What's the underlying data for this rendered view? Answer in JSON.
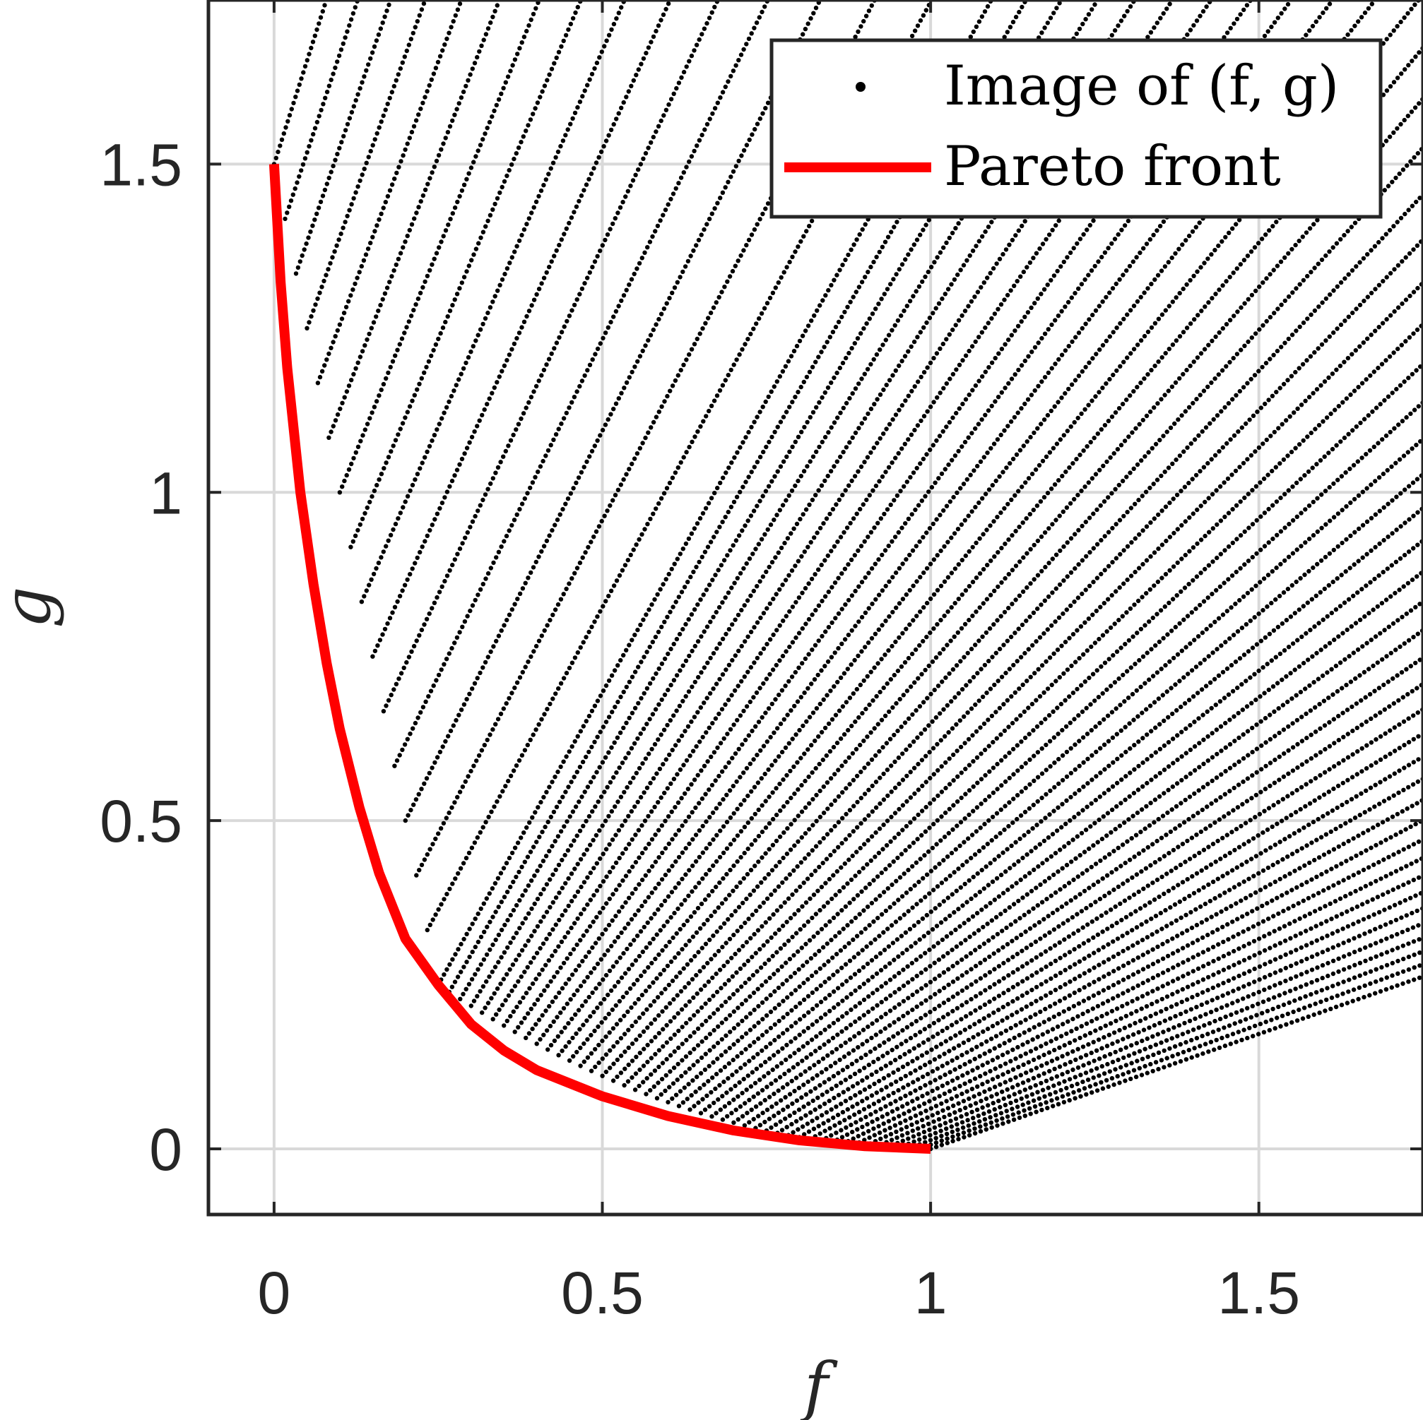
{
  "chart_data": {
    "type": "scatter",
    "xlabel": "f",
    "ylabel": "g",
    "xlim": [
      -0.1,
      1.75
    ],
    "ylim": [
      -0.1,
      1.75
    ],
    "xticks": [
      "0",
      "0.5",
      "1",
      "1.5"
    ],
    "yticks": [
      "0",
      "0.5",
      "1",
      "1.5"
    ],
    "xtick_values": [
      0,
      0.5,
      1,
      1.5
    ],
    "ytick_values": [
      0,
      0.5,
      1,
      1.5
    ],
    "grid": true,
    "legend_position": "top-right",
    "series": [
      {
        "name": "Image of (f, g)",
        "kind": "scatter",
        "color": "#000000"
      },
      {
        "name": "Pareto front",
        "kind": "line",
        "color": "#ff0000",
        "x": [
          0,
          0.01,
          0.02,
          0.04,
          0.06,
          0.08,
          0.1,
          0.13,
          0.16,
          0.2,
          0.25,
          0.3,
          0.35,
          0.4,
          0.5,
          0.6,
          0.7,
          0.8,
          0.9,
          1.0
        ],
        "y": [
          1.5,
          1.32,
          1.19,
          1.0,
          0.86,
          0.74,
          0.64,
          0.52,
          0.42,
          0.32,
          0.25,
          0.19,
          0.15,
          0.12,
          0.08,
          0.05,
          0.028,
          0.013,
          0.004,
          0.0
        ]
      }
    ]
  }
}
